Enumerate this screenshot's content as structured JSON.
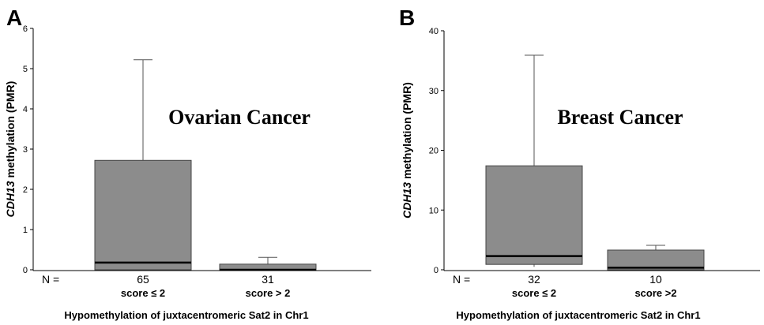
{
  "chart_data": [
    {
      "type": "box",
      "panel_label": "A",
      "annotation": "Ovarian Cancer",
      "ylabel_italic": "CDH13",
      "ylabel_rest": " methylation (PMR)",
      "xlabel": "Hypomethylation of juxtacentromeric Sat2 in Chr1",
      "n_prefix": "N =",
      "ylim": [
        0,
        6
      ],
      "yticks": [
        "0",
        "1",
        "2",
        "3",
        "4",
        "5",
        "6"
      ],
      "box_color": "#8c8c8c",
      "categories": [
        {
          "n": "65",
          "label": "score ≤ 2",
          "whisker_low": 0,
          "q1": 0,
          "median": 0.18,
          "q3": 2.72,
          "whisker_high": 5.22
        },
        {
          "n": "31",
          "label": "score > 2",
          "whisker_low": 0,
          "q1": 0,
          "median": 0,
          "q3": 0.14,
          "whisker_high": 0.31
        }
      ]
    },
    {
      "type": "box",
      "panel_label": "B",
      "annotation": "Breast Cancer",
      "ylabel_italic": "CDH13",
      "ylabel_rest": " methylation (PMR)",
      "xlabel": "Hypomethylation of juxtacentromeric Sat2 in Chr1",
      "n_prefix": "N =",
      "ylim": [
        0,
        40
      ],
      "yticks": [
        "0",
        "10",
        "20",
        "30",
        "40"
      ],
      "box_color": "#8c8c8c",
      "categories": [
        {
          "n": "32",
          "label": "score ≤ 2",
          "whisker_low": 0.5,
          "q1": 0.9,
          "median": 2.3,
          "q3": 17.4,
          "whisker_high": 35.9
        },
        {
          "n": "10",
          "label": "score >2",
          "whisker_low": 0,
          "q1": 0,
          "median": 0.35,
          "q3": 3.3,
          "whisker_high": 4.1
        }
      ]
    }
  ]
}
